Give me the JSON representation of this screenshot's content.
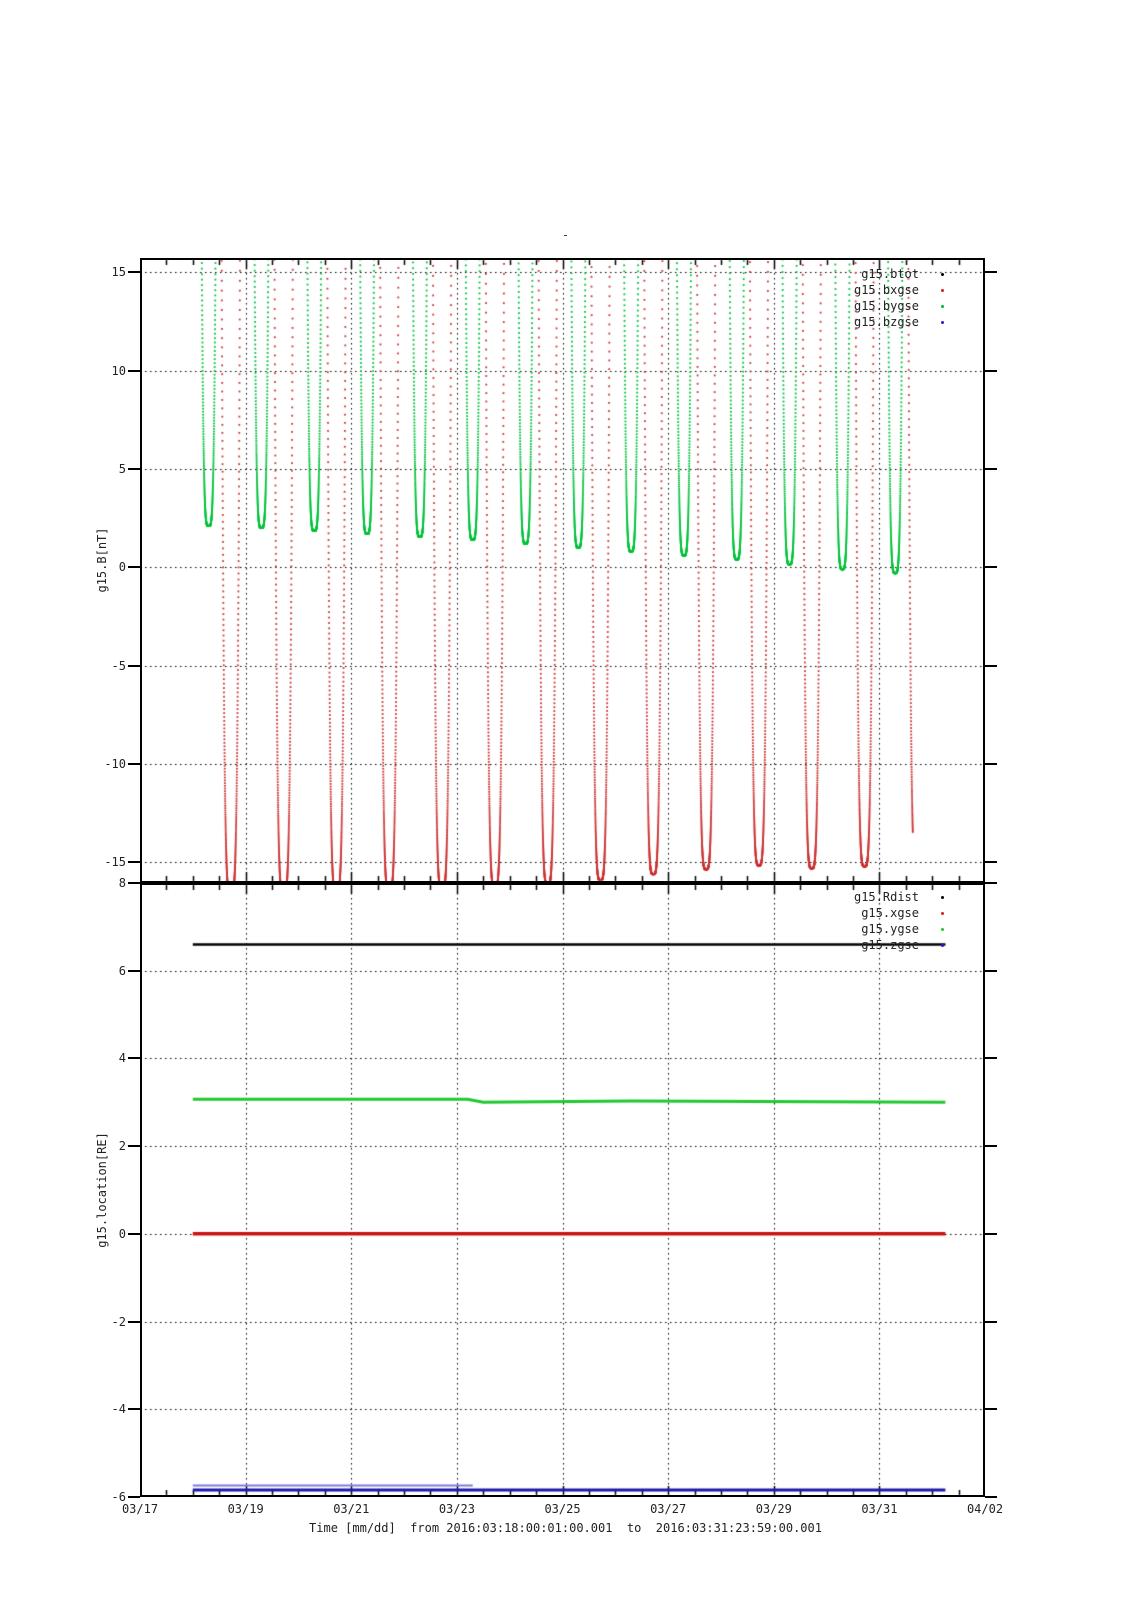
{
  "chart_data": {
    "type": "line",
    "title": "-",
    "xlabel": "Time [mm/dd]  from 2016:03:18:00:01:00.001  to  2016:03:31:23:59:00.001",
    "grid": true,
    "time_axis": {
      "tick_labels": [
        "03/17",
        "03/19",
        "03/21",
        "03/23",
        "03/25",
        "03/27",
        "03/29",
        "03/31",
        "04/02"
      ],
      "days_total": 16,
      "major_tick_every_days": 2,
      "minor_tick_every_days": 0.5,
      "data_start_day": 1.0,
      "data_end_day": 15.25
    },
    "panels": [
      {
        "ylabel": "g15.B[nT]",
        "ylim_top": 15.72,
        "ylim_bottom": -16.05,
        "yticks": [
          15,
          10,
          5,
          0,
          -5,
          -10,
          -15
        ],
        "legend": [
          {
            "label": "g15.btot",
            "color": "#000000"
          },
          {
            "label": "g15.bxgse",
            "color": "#cc2222"
          },
          {
            "label": "g15.bygse",
            "color": "#00b43c"
          },
          {
            "label": "g15.bzgse",
            "color": "#2222cc"
          }
        ],
        "spikes": {
          "description": "daily V-shaped dips; green=bygse, red=bxgse; btot/bzgse off-scale",
          "dot_color_green": "#00c23c",
          "dot_color_red": "#cc3333",
          "green_center_offset_day": 0.3,
          "red_center_offset_day": 0.72,
          "green_quartic_a": 48000,
          "red_quartic_a": 36000,
          "days": [
            "03/18",
            "03/19",
            "03/20",
            "03/21",
            "03/22",
            "03/23",
            "03/24",
            "03/25",
            "03/26",
            "03/27",
            "03/28",
            "03/29",
            "03/30",
            "03/31"
          ],
          "day_offsets": [
            1,
            2,
            3,
            4,
            5,
            6,
            7,
            8,
            9,
            10,
            11,
            12,
            13,
            14
          ],
          "green_minima": [
            2.1,
            2.0,
            1.85,
            1.7,
            1.55,
            1.4,
            1.2,
            1.0,
            0.8,
            0.6,
            0.4,
            0.15,
            -0.1,
            -0.3
          ],
          "red_minima": [
            -16.6,
            -16.55,
            -16.5,
            -16.45,
            -16.35,
            -16.25,
            -16.1,
            -15.9,
            -15.6,
            -15.35,
            -15.15,
            -15.3,
            -15.2,
            -15.5
          ],
          "red_partial_last_end_value": -13.5
        }
      },
      {
        "ylabel": "g15.location[RE]",
        "ylim_top": 8,
        "ylim_bottom": -6,
        "yticks": [
          8,
          6,
          4,
          2,
          0,
          -2,
          -4,
          -6
        ],
        "legend": [
          {
            "label": "g15.Rdist",
            "color": "#000000"
          },
          {
            "label": "g15.xgse",
            "color": "#cc2222"
          },
          {
            "label": "g15.ygse",
            "color": "#22c832"
          },
          {
            "label": "g15.zgse",
            "color": "#2222cc"
          }
        ],
        "lines": [
          {
            "name": "g15.Rdist",
            "color": "#000000",
            "width": 2.5,
            "points": [
              [
                1.0,
                6.6
              ],
              [
                15.25,
                6.6
              ]
            ]
          },
          {
            "name": "g15.ygse",
            "color": "#22c832",
            "width": 3,
            "points": [
              [
                1.0,
                3.07
              ],
              [
                6.2,
                3.07
              ],
              [
                6.5,
                3.0
              ],
              [
                9.3,
                3.03
              ],
              [
                15.25,
                3.0
              ]
            ]
          },
          {
            "name": "g15.xgse",
            "color": "#cc1111",
            "width": 3.5,
            "points": [
              [
                1.0,
                0.0
              ],
              [
                15.25,
                0.0
              ]
            ]
          },
          {
            "name": "g15.zgse",
            "color": "#1a1aae",
            "width": 3,
            "points": [
              [
                1.0,
                -5.84
              ],
              [
                15.25,
                -5.84
              ]
            ]
          },
          {
            "name": "g15.zgse-upper-edge",
            "color": "#7a7ae0",
            "width": 2,
            "points": [
              [
                1.0,
                -5.74
              ],
              [
                6.3,
                -5.74
              ]
            ]
          }
        ]
      }
    ]
  }
}
